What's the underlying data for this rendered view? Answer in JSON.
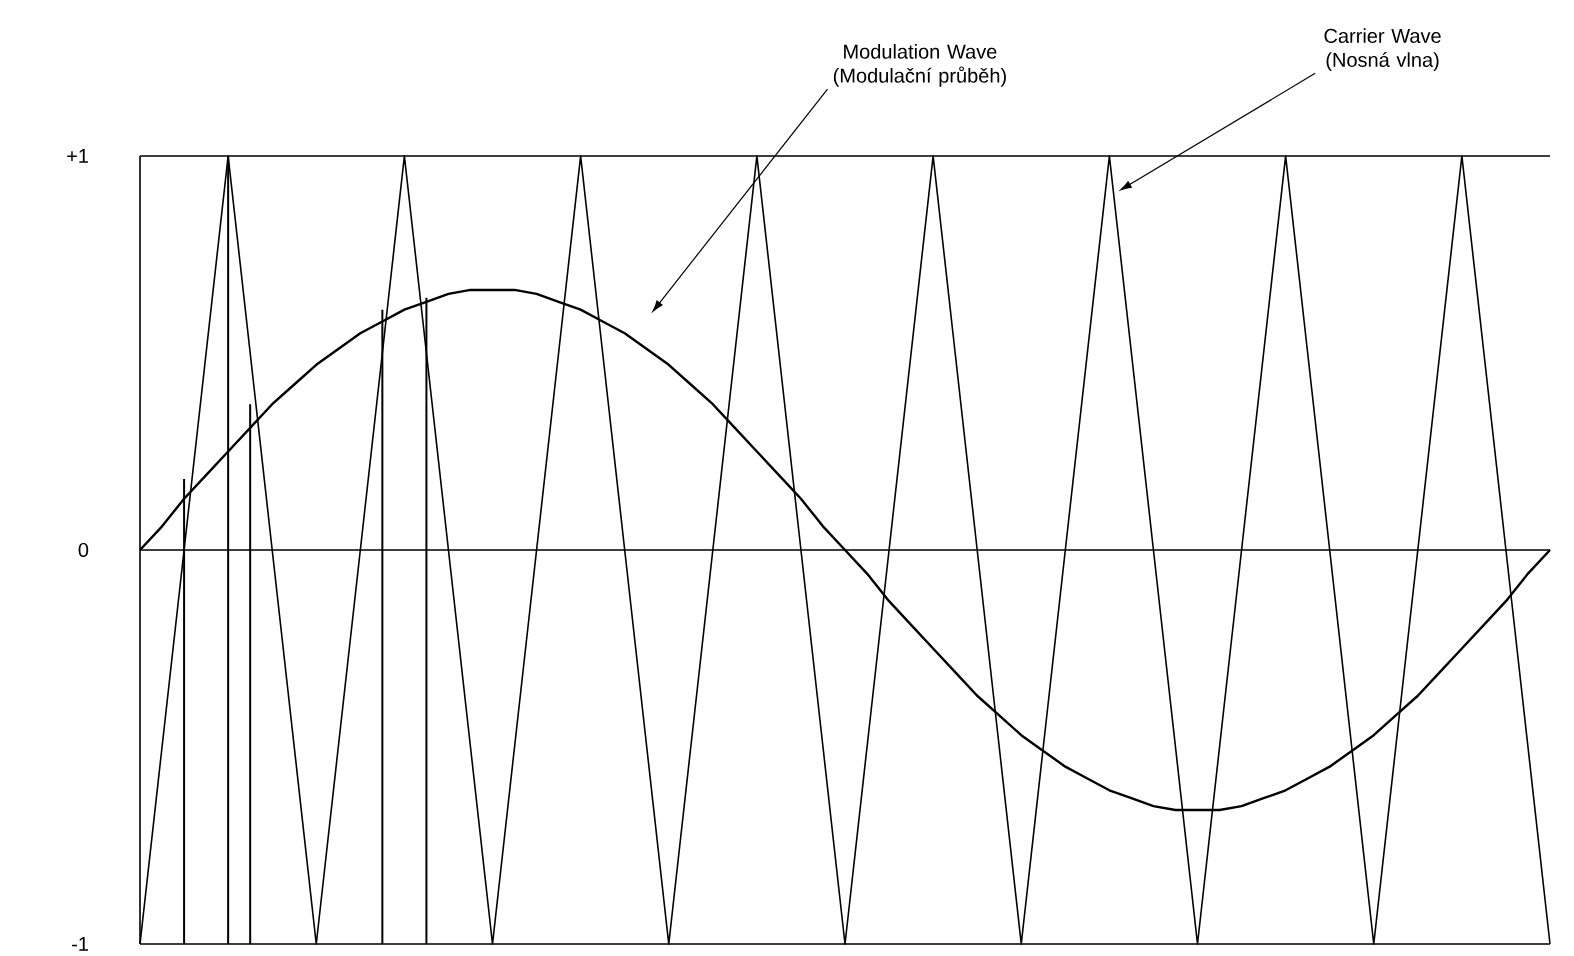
{
  "chart_data": {
    "type": "line",
    "ylim": [
      -1,
      1
    ],
    "categories": [
      null,
      null,
      null,
      null,
      null,
      null,
      null,
      null,
      null,
      null,
      null,
      null,
      null,
      null,
      null,
      null,
      null,
      null,
      null,
      null,
      null,
      null,
      null,
      null,
      null,
      null,
      null,
      null,
      null,
      null,
      null,
      null,
      null,
      null,
      null,
      null,
      null,
      null,
      null,
      null,
      null,
      null,
      null,
      null,
      null,
      null,
      null,
      null,
      null,
      null,
      null,
      null,
      null,
      null,
      null,
      null,
      null,
      null,
      null,
      null,
      null,
      null,
      null,
      null,
      null
    ],
    "yticks": [
      {
        "value": 1,
        "label": "+1"
      },
      0,
      {
        "value": -1,
        "label": "-1"
      }
    ],
    "tick_labels": "y",
    "grid": "y",
    "series": [
      {
        "color": "#000000",
        "values": [
          -1,
          -0.5,
          0,
          0.5,
          1,
          0.5,
          0,
          -0.5,
          -1,
          -0.5,
          0,
          0.5,
          1,
          0.5,
          0,
          -0.5,
          -1,
          -0.5,
          0,
          0.5,
          1,
          0.5,
          0,
          -0.5,
          -1,
          -0.5,
          0,
          0.5,
          1,
          0.5,
          0,
          -0.5,
          -1,
          -0.5,
          0,
          0.5,
          1,
          0.5,
          0,
          -0.5,
          -1,
          -0.5,
          0,
          0.5,
          1,
          0.5,
          0,
          -0.5,
          -1,
          -0.5,
          0,
          0.5,
          1,
          0.5,
          0,
          -0.5,
          -1,
          -0.5,
          0,
          0.5,
          1,
          0.5,
          0,
          -0.5,
          -1
        ]
      },
      {
        "color": "#000000",
        "values": [
          0,
          0.06,
          0.13,
          0.19,
          0.25,
          0.31,
          0.37,
          0.42,
          0.47,
          0.51,
          0.55,
          0.58,
          0.61,
          0.63,
          0.65,
          0.66,
          0.66,
          0.66,
          0.65,
          0.63,
          0.61,
          0.58,
          0.55,
          0.51,
          0.47,
          0.42,
          0.37,
          0.31,
          0.25,
          0.19,
          0.13,
          0.06,
          0,
          -0.06,
          -0.13,
          -0.19,
          -0.25,
          -0.31,
          -0.37,
          -0.42,
          -0.47,
          -0.51,
          -0.55,
          -0.58,
          -0.61,
          -0.63,
          -0.65,
          -0.66,
          -0.66,
          -0.66,
          -0.65,
          -0.63,
          -0.61,
          -0.58,
          -0.55,
          -0.51,
          -0.47,
          -0.42,
          -0.37,
          -0.31,
          -0.25,
          -0.19,
          -0.13,
          -0.06,
          0
        ]
      },
      {
        "type": "bar",
        "color": "#000000",
        "base": [
          null,
          null,
          -1,
          null,
          -1,
          -1,
          null,
          null,
          null,
          null,
          null,
          -1,
          null,
          -1,
          null,
          null,
          null,
          null,
          null,
          null,
          null,
          null,
          null,
          null,
          null,
          null,
          null,
          null,
          null,
          null,
          null,
          null,
          null,
          null,
          null,
          null,
          null,
          null,
          null,
          null,
          null,
          null,
          null,
          null,
          null,
          null,
          null,
          null,
          null,
          null,
          null,
          null,
          null,
          null,
          null,
          null,
          null,
          null,
          null,
          null,
          null,
          null,
          null,
          null,
          null
        ],
        "values": [
          null,
          null,
          1.18,
          null,
          2,
          1.37,
          null,
          null,
          null,
          null,
          null,
          1.61,
          null,
          1.64,
          null,
          null,
          null,
          null,
          null,
          null,
          null,
          null,
          null,
          null,
          null,
          null,
          null,
          null,
          null,
          null,
          null,
          null,
          null,
          null,
          null,
          null,
          null,
          null,
          null,
          null,
          null,
          null,
          null,
          null,
          null,
          null,
          null,
          null,
          null,
          null,
          null,
          null,
          null,
          null,
          null,
          null,
          null,
          null,
          null,
          null,
          null,
          null,
          null,
          null,
          null
        ]
      }
    ],
    "annotations": [
      "Modulation Wave (Modulační průběh)",
      "Carrier Wave (Nosná vlna)"
    ]
  }
}
